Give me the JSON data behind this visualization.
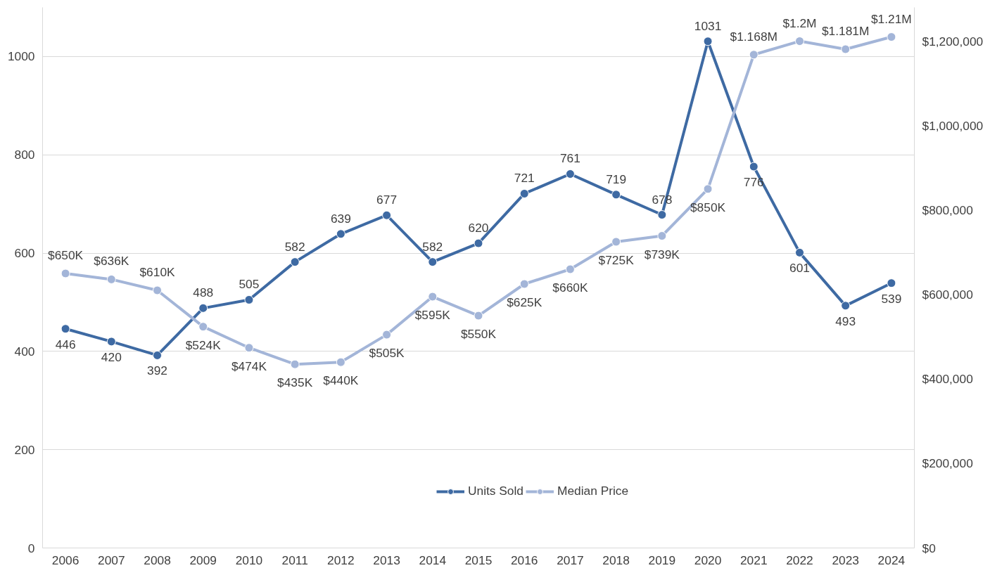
{
  "chart_data": {
    "type": "line",
    "categories": [
      "2006",
      "2007",
      "2008",
      "2009",
      "2010",
      "2011",
      "2012",
      "2013",
      "2014",
      "2015",
      "2016",
      "2017",
      "2018",
      "2019",
      "2020",
      "2021",
      "2022",
      "2023",
      "2024"
    ],
    "series": [
      {
        "name": "Units Sold",
        "color": "#3e6aa3",
        "values": [
          446,
          420,
          392,
          488,
          505,
          582,
          639,
          677,
          582,
          620,
          721,
          761,
          719,
          678,
          1031,
          776,
          601,
          493,
          539
        ],
        "value_labels": [
          "446",
          "420",
          "392",
          "488",
          "505",
          "582",
          "639",
          "677",
          "582",
          "620",
          "721",
          "761",
          "719",
          "678",
          "1031",
          "776",
          "601",
          "493",
          "539"
        ]
      },
      {
        "name": "Median Price",
        "color": "#a3b5d8",
        "axis": "y2",
        "values": [
          650000,
          636000,
          610000,
          524000,
          474000,
          435000,
          440000,
          505000,
          595000,
          550000,
          625000,
          660000,
          725000,
          739000,
          850000,
          1168000,
          1200000,
          1181000,
          1210000
        ],
        "value_labels": [
          "$650K",
          "$636K",
          "$610K",
          "$524K",
          "$474K",
          "$435K",
          "$440K",
          "$505K",
          "$595K",
          "$550K",
          "$625K",
          "$660K",
          "$725K",
          "$739K",
          "$850K",
          "$1.168M",
          "$1.2M",
          "$1.181M",
          "$1.21M"
        ]
      }
    ],
    "ylim": [
      0,
      1100
    ],
    "yticks": [
      0,
      200,
      400,
      600,
      800,
      1000
    ],
    "y2lim": [
      0,
      1280000
    ],
    "y2ticks": [
      {
        "value": 0,
        "label": "$0"
      },
      {
        "value": 200000,
        "label": "$200,000"
      },
      {
        "value": 400000,
        "label": "$400,000"
      },
      {
        "value": 600000,
        "label": "$600,000"
      },
      {
        "value": 800000,
        "label": "$800,000"
      },
      {
        "value": 1000000,
        "label": "$1,000,000"
      },
      {
        "value": 1200000,
        "label": "$1,200,000"
      }
    ],
    "grid": "y",
    "legend": "bottom",
    "marker": "circle",
    "line_style": "solid"
  }
}
